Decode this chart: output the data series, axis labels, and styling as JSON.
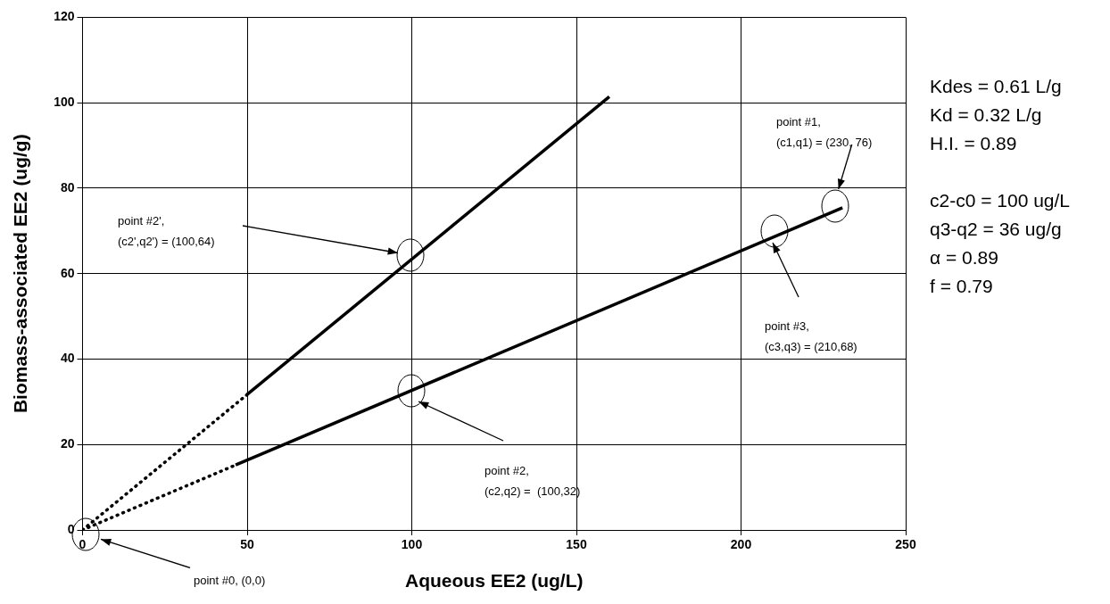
{
  "chart_data": {
    "type": "line",
    "xlabel": "Aqueous EE2 (ug/L)",
    "ylabel": "Biomass-associated EE2 (ug/g)",
    "xlim": [
      0,
      250
    ],
    "xticks": [
      0,
      50,
      100,
      150,
      200,
      250
    ],
    "ylim": [
      0,
      120
    ],
    "yticks": [
      0,
      20,
      40,
      60,
      80,
      100,
      120
    ],
    "grid": true,
    "series": [
      {
        "color": "#000000",
        "line_style": "dotted",
        "x": [
          0,
          50
        ],
        "values": [
          0,
          31.7
        ]
      },
      {
        "color": "#000000",
        "line_style": "solid",
        "x": [
          50,
          160
        ],
        "values": [
          31.7,
          101.4
        ]
      },
      {
        "color": "#000000",
        "line_style": "dotted",
        "x": [
          0,
          46.5
        ],
        "values": [
          0,
          15.2
        ]
      },
      {
        "color": "#000000",
        "line_style": "solid",
        "x": [
          46.5,
          230.8
        ],
        "values": [
          15.2,
          75.4
        ]
      }
    ],
    "annotations": [
      "point #2',\n(c2',q2') = (100,64)",
      "point #1,\n(c1,q1) = (230, 76)",
      "point #3,\n(c3,q3) = (210,68)",
      "point #2,\n(c2,q2) =  (100,32)",
      "point #0, (0,0)",
      "Kdes = 0.61 L/g",
      "Kd = 0.32 L/g",
      "H.I. = 0.89",
      "c2-c0 = 100 ug/L",
      "q3-q2 = 36 ug/g",
      "α = 0.89",
      "f = 0.79"
    ]
  }
}
